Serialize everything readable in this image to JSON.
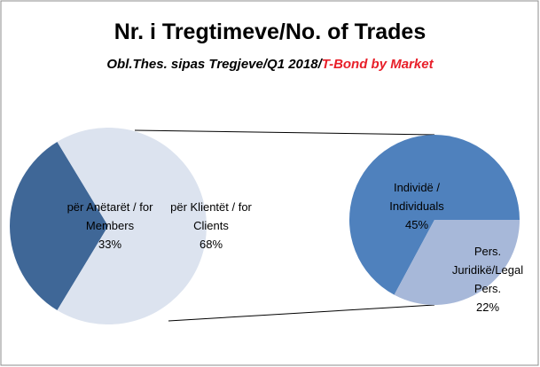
{
  "chart_data": {
    "type": "pie-of-pie",
    "title": "Nr. i Tregtimeve/No. of Trades",
    "subtitle": "Obl.Thes. sipas Tregjeve/Q1 2018/",
    "subtitle_highlight": "T-Bond by Market",
    "categories": [
      "për Anëtarët / for Members",
      "për Klientët / for Clients"
    ],
    "values": [
      33,
      68
    ],
    "value_labels": [
      "33%",
      "68%"
    ],
    "colors": [
      "#3f6797",
      "#dce3ef"
    ],
    "secondary": {
      "categories": [
        "Individë / Individuals",
        "Pers. Juridikë/Legal Pers."
      ],
      "values": [
        45,
        22
      ],
      "value_labels": [
        "45%",
        "22%"
      ],
      "colors": [
        "#4f81bd",
        "#a7b8d9"
      ]
    }
  }
}
